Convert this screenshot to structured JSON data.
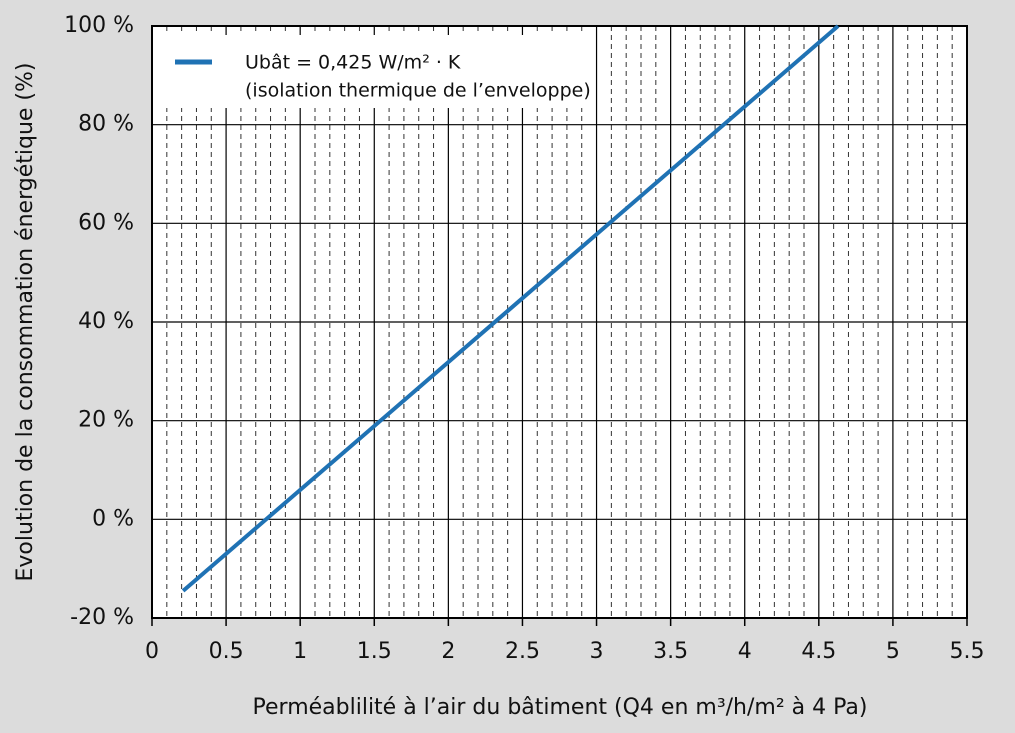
{
  "chart_data": {
    "type": "line",
    "xlabel": "Perméablilité à l’air du bâtiment (Q4 en m³/h/m² à 4 Pa)",
    "ylabel": "Evolution de la consommation énergétique (%)",
    "series": [
      {
        "name": "Ubât = 0,425 W/m² · K",
        "color": "#1f72b4",
        "x": [
          0.21,
          4.63
        ],
        "values": [
          -14.5,
          100
        ]
      }
    ],
    "legend_subtitle": "(isolation thermique de l’enveloppe)",
    "legend": "upper left",
    "xlim": [
      0,
      5.5
    ],
    "ylim": [
      -20,
      100
    ],
    "xticks": [
      0,
      0.5,
      1,
      1.5,
      2,
      2.5,
      3,
      3.5,
      4,
      4.5,
      5,
      5.5
    ],
    "xminorticks": [
      0.1,
      0.2,
      0.3,
      0.4,
      0.6,
      0.7,
      0.8,
      0.9,
      1.1,
      1.2,
      1.3,
      1.4,
      1.6,
      1.7,
      1.8,
      1.9,
      2.1,
      2.2,
      2.3,
      2.4,
      2.6,
      2.7,
      2.8,
      2.9,
      3.1,
      3.2,
      3.3,
      3.4,
      3.6,
      3.7,
      3.8,
      3.9,
      4.1,
      4.2,
      4.3,
      4.4,
      4.6,
      4.7,
      4.8,
      4.9,
      5.1,
      5.2,
      5.3,
      5.4
    ],
    "yticks": [
      {
        "value": -20,
        "label": "-20 %"
      },
      {
        "value": 0,
        "label": "0 %"
      },
      {
        "value": 20,
        "label": "20 %"
      },
      {
        "value": 40,
        "label": "40 %"
      },
      {
        "value": 60,
        "label": "60 %"
      },
      {
        "value": 80,
        "label": "80 %"
      },
      {
        "value": 100,
        "label": "100 %"
      }
    ],
    "grid": true
  }
}
